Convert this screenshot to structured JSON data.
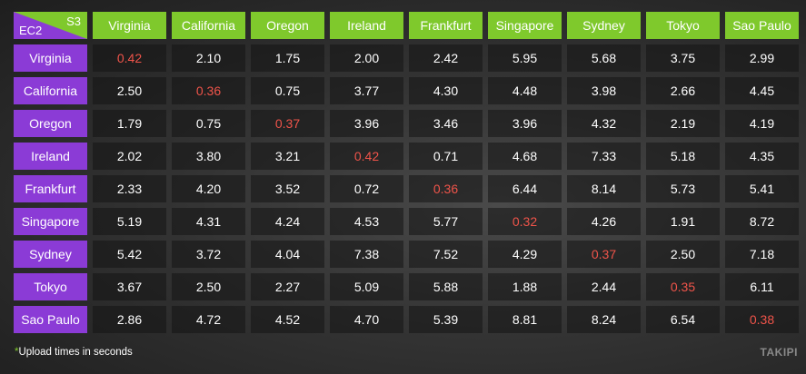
{
  "chart_data": {
    "type": "table",
    "corner_top_right": "S3",
    "corner_bottom_left": "EC2",
    "columns": [
      "Virginia",
      "California",
      "Oregon",
      "Ireland",
      "Frankfurt",
      "Singapore",
      "Sydney",
      "Tokyo",
      "Sao Paulo"
    ],
    "rows": [
      {
        "label": "Virginia",
        "values": [
          "0.42",
          "2.10",
          "1.75",
          "2.00",
          "2.42",
          "5.95",
          "5.68",
          "3.75",
          "2.99"
        ]
      },
      {
        "label": "California",
        "values": [
          "2.50",
          "0.36",
          "0.75",
          "3.77",
          "4.30",
          "4.48",
          "3.98",
          "2.66",
          "4.45"
        ]
      },
      {
        "label": "Oregon",
        "values": [
          "1.79",
          "0.75",
          "0.37",
          "3.96",
          "3.46",
          "3.96",
          "4.32",
          "2.19",
          "4.19"
        ]
      },
      {
        "label": "Ireland",
        "values": [
          "2.02",
          "3.80",
          "3.21",
          "0.42",
          "0.71",
          "4.68",
          "7.33",
          "5.18",
          "4.35"
        ]
      },
      {
        "label": "Frankfurt",
        "values": [
          "2.33",
          "4.20",
          "3.52",
          "0.72",
          "0.36",
          "6.44",
          "8.14",
          "5.73",
          "5.41"
        ]
      },
      {
        "label": "Singapore",
        "values": [
          "5.19",
          "4.31",
          "4.24",
          "4.53",
          "5.77",
          "0.32",
          "4.26",
          "1.91",
          "8.72"
        ]
      },
      {
        "label": "Sydney",
        "values": [
          "5.42",
          "3.72",
          "4.04",
          "7.38",
          "7.52",
          "4.29",
          "0.37",
          "2.50",
          "7.18"
        ]
      },
      {
        "label": "Tokyo",
        "values": [
          "3.67",
          "2.50",
          "2.27",
          "5.09",
          "5.88",
          "1.88",
          "2.44",
          "0.35",
          "6.11"
        ]
      },
      {
        "label": "Sao Paulo",
        "values": [
          "2.86",
          "4.72",
          "4.52",
          "4.70",
          "5.39",
          "8.81",
          "8.24",
          "6.54",
          "0.38"
        ]
      }
    ]
  },
  "footnote": {
    "star": "*",
    "text": "Upload times in seconds"
  },
  "logo": "TAKIPI",
  "colors": {
    "header_green": "#7fc92c",
    "row_purple": "#8b3bd6",
    "diagonal_red": "#f0544a"
  }
}
